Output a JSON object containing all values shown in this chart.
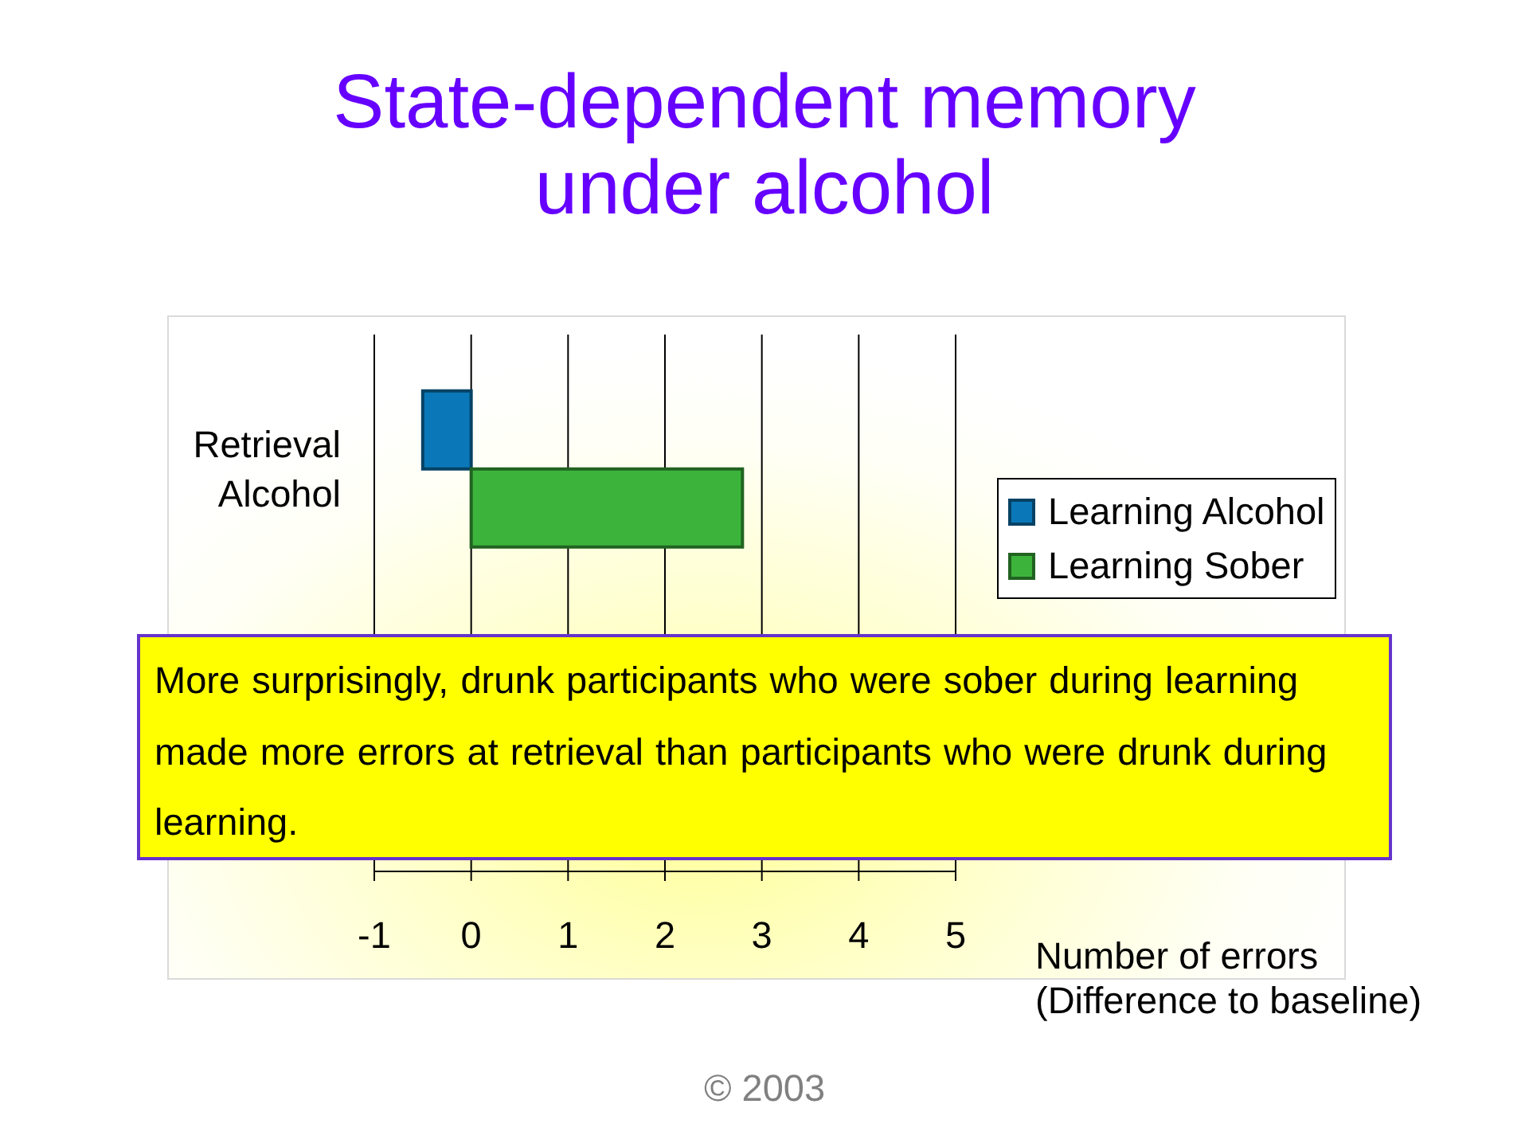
{
  "chart_data": {
    "type": "bar",
    "orientation": "horizontal",
    "title": "State-dependent memory under alcohol",
    "xlabel": "Number of errors (Difference to baseline)",
    "categories": [
      "Retrieval Alcohol",
      null
    ],
    "series": [
      {
        "name": "Learning Alcohol",
        "color": "#0a78b8",
        "values": [
          -0.5,
          null
        ]
      },
      {
        "name": "Learning Sober",
        "color": "#3cb43c",
        "values": [
          2.8,
          null
        ]
      }
    ],
    "xlim": [
      -1,
      5
    ],
    "xticks": [
      -1,
      0,
      1,
      2,
      3,
      4,
      5
    ],
    "grid": "x",
    "legend": "right",
    "annotations": [
      "More surprisingly, drunk participants who were sober during learning made more errors at retrieval than participants who were drunk during learning.",
      "© 2003"
    ]
  }
}
